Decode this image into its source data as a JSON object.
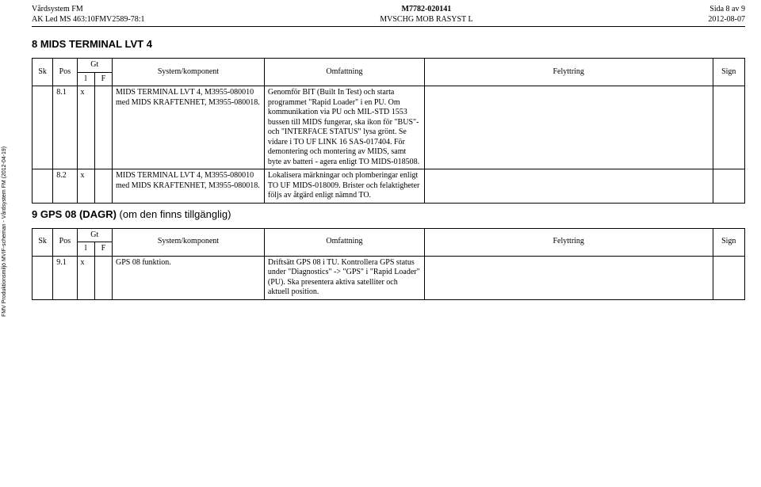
{
  "header": {
    "left1": "Vårdsystem FM",
    "left2": "AK Led MS 463:10FMV2589-78:1",
    "center1": "M7782-020141",
    "center2": "MVSCHG MOB RASYST L",
    "right1": "Sida 8 av 9",
    "right2": "2012-08-07"
  },
  "section1": {
    "title": "8 MIDS TERMINAL LVT 4",
    "head": {
      "sk": "Sk",
      "pos": "Pos",
      "gt": "Gt",
      "l": "l",
      "f": "F",
      "sys": "System/komponent",
      "omf": "Omfattning",
      "fel": "Felyttring",
      "sign": "Sign"
    },
    "rows": [
      {
        "sk": "",
        "pos": "8.1",
        "l": "x",
        "f": "",
        "sys": "MIDS TERMINAL LVT 4, M3955-080010 med MIDS KRAFTENHET, M3955-080018.",
        "omf": "Genomför BIT (Built In Test) och starta programmet \"Rapid Loader\" i en PU. Om kommunikation via PU och MIL-STD 1553 bussen till MIDS fungerar, ska ikon för \"BUS\"- och \"INTERFACE STATUS\" lysa grönt. Se vidare i TO UF LINK 16 SAS-017404. För demontering och montering av MIDS, samt byte av batteri - agera enligt TO MIDS-018508.",
        "fel": "",
        "sign": ""
      },
      {
        "sk": "",
        "pos": "8.2",
        "l": "x",
        "f": "",
        "sys": "MIDS TERMINAL LVT 4, M3955-080010 med MIDS KRAFTENHET, M3955-080018.",
        "omf": "Lokalisera märkningar och plomberingar enligt TO UF MIDS-018009. Brister och felaktigheter följs av åtgärd enligt nämnd TO.",
        "fel": "",
        "sign": ""
      }
    ]
  },
  "section2": {
    "title": "9 GPS 08 (DAGR)",
    "title_suffix": " (om den finns tillgänglig)",
    "head": {
      "sk": "Sk",
      "pos": "Pos",
      "gt": "Gt",
      "l": "l",
      "f": "F",
      "sys": "System/komponent",
      "omf": "Omfattning",
      "fel": "Felyttring",
      "sign": "Sign"
    },
    "rows": [
      {
        "sk": "",
        "pos": "9.1",
        "l": "x",
        "f": "",
        "sys": "GPS 08 funktion.",
        "omf": "Driftsätt GPS 08 i TU. Kontrollera GPS status under \"Diagnostics\" -> \"GPS\" i \"Rapid Loader\" (PU). Ska presentera aktiva satelliter och aktuell position.",
        "fel": "",
        "sign": ""
      }
    ]
  },
  "sidelabel": "FMV Produktionsmiljö MVIF-scheman - Vårdsystem FM (2012-04-19)"
}
